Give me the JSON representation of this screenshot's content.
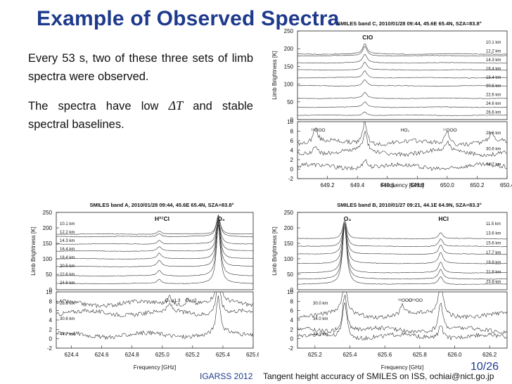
{
  "slide": {
    "title": "Example of Observed Spectra",
    "para1": "Every 53 s, two of these three sets of limb spectra were observed.",
    "para2_a": "The spectra have low",
    "para2_delta": "ΔT",
    "para2_b": "and stable spectral baselines.",
    "conference": "IGARSS 2012",
    "caption": "Tangent height accuracy of SMILES on ISS, ochiai@nict.go.jp",
    "page": "10/26"
  },
  "chart_data": [
    {
      "id": "band-c",
      "type": "line",
      "title": "SMILES band C, 2010/01/28 09:44, 45.6E 65.4N, SZA=83.8°",
      "xlabel": "Frequency  [GHz]",
      "ylabel": "Limb Brightness  [K]",
      "xlim": [
        649.0,
        650.4
      ],
      "x_ticks": [
        "649.2",
        "649.4",
        "649.6",
        "649.8",
        "650.0",
        "650.2",
        "650.4"
      ],
      "upper_ylim": [
        0,
        250
      ],
      "upper_ticks": [
        "0",
        "50",
        "100",
        "150",
        "200",
        "250"
      ],
      "lower_ylim": [
        -2,
        10
      ],
      "lower_ticks": [
        "-2",
        "0",
        "2",
        "4",
        "6",
        "8",
        "10"
      ],
      "upper_heights": [
        "10.1 km",
        "12.2 km",
        "14.3 km",
        "16.4 km",
        "18.4 km",
        "20.5 km",
        "22.6 km",
        "24.6 km",
        "26.6 km"
      ],
      "lower_heights": [
        "28.6 km",
        "30.6 km",
        "44.7 km"
      ],
      "species": [
        {
          "label": "ClO",
          "freq": 649.45
        },
        {
          "label": "HO₂",
          "freq": 649.7
        },
        {
          "label": "¹⁸OOO",
          "freq": 649.12
        },
        {
          "label": "¹⁷OOO",
          "freq": 650.0
        }
      ],
      "upper_series": [
        {
          "name": "10.1 km",
          "level": 185,
          "peaks": [
            [
              649.45,
              28
            ]
          ]
        },
        {
          "name": "12.2 km",
          "level": 180,
          "peaks": [
            [
              649.45,
              26
            ]
          ]
        },
        {
          "name": "14.3 km",
          "level": 160,
          "peaks": [
            [
              649.45,
              24
            ]
          ]
        },
        {
          "name": "16.4 km",
          "level": 140,
          "peaks": [
            [
              649.45,
              22
            ]
          ]
        },
        {
          "name": "18.4 km",
          "level": 118,
          "peaks": [
            [
              649.45,
              20
            ]
          ]
        },
        {
          "name": "20.5 km",
          "level": 95,
          "peaks": [
            [
              649.45,
              18
            ]
          ]
        },
        {
          "name": "22.6 km",
          "level": 60,
          "peaks": [
            [
              649.45,
              16
            ]
          ]
        },
        {
          "name": "24.6 km",
          "level": 35,
          "peaks": [
            [
              649.45,
              14
            ]
          ]
        },
        {
          "name": "26.6 km",
          "level": 12,
          "peaks": [
            [
              649.45,
              10
            ]
          ]
        }
      ],
      "lower_series": [
        {
          "name": "28.6 km",
          "level": 5.5,
          "peaks": [
            [
              649.12,
              3
            ],
            [
              649.45,
              5
            ],
            [
              650.0,
              3
            ],
            [
              650.3,
              2
            ]
          ]
        },
        {
          "name": "30.6 km",
          "level": 3.5,
          "peaks": [
            [
              649.12,
              2
            ],
            [
              649.45,
              4
            ],
            [
              650.0,
              2
            ]
          ]
        },
        {
          "name": "44.7 km",
          "level": 0.5,
          "peaks": [
            [
              649.45,
              2
            ]
          ]
        }
      ]
    },
    {
      "id": "band-a",
      "type": "line",
      "title": "SMILES band A, 2010/01/28 09:44, 45.6E 65.4N, SZA=83.8°",
      "xlabel": "Frequency  [GHz]",
      "ylabel": "Limb Brightness  [K]",
      "xlim": [
        624.3,
        625.6
      ],
      "x_ticks": [
        "624.4",
        "624.6",
        "624.8",
        "625.0",
        "625.2",
        "625.4",
        "625.6"
      ],
      "upper_ylim": [
        0,
        250
      ],
      "upper_ticks": [
        "0",
        "50",
        "100",
        "150",
        "200",
        "250"
      ],
      "lower_ylim": [
        -2,
        10
      ],
      "lower_ticks": [
        "-2",
        "0",
        "2",
        "4",
        "6",
        "8",
        "10"
      ],
      "upper_heights": [
        "10.1 km",
        "12.2 km",
        "14.3 km",
        "16.4 km",
        "18.4 km",
        "20.5 km",
        "22.6 km",
        "24.6 km"
      ],
      "lower_heights": [
        "28.6 km",
        "30.6 km",
        "44.7 km"
      ],
      "species": [
        {
          "label": "H³⁷Cl",
          "freq": 624.98
        },
        {
          "label": "O₃",
          "freq": 625.37
        },
        {
          "label": "O₃,ν1,3",
          "freq": 625.05
        },
        {
          "label": "O₃,ν2",
          "freq": 625.17
        }
      ],
      "upper_series": [
        {
          "name": "10.1 km",
          "level": 180,
          "peaks": [
            [
              625.37,
              60
            ],
            [
              624.98,
              10
            ]
          ]
        },
        {
          "name": "12.2 km",
          "level": 172,
          "peaks": [
            [
              625.37,
              70
            ],
            [
              624.98,
              10
            ]
          ]
        },
        {
          "name": "14.3 km",
          "level": 148,
          "peaks": [
            [
              625.37,
              85
            ],
            [
              624.98,
              12
            ]
          ]
        },
        {
          "name": "16.4 km",
          "level": 125,
          "peaks": [
            [
              625.37,
              105
            ],
            [
              624.98,
              14
            ]
          ]
        },
        {
          "name": "18.4 km",
          "level": 100,
          "peaks": [
            [
              625.37,
              130
            ],
            [
              624.98,
              18
            ]
          ]
        },
        {
          "name": "20.5 km",
          "level": 75,
          "peaks": [
            [
              625.37,
              155
            ],
            [
              624.98,
              20
            ]
          ]
        },
        {
          "name": "22.6 km",
          "level": 45,
          "peaks": [
            [
              625.37,
              175
            ],
            [
              624.98,
              18
            ]
          ]
        },
        {
          "name": "24.6 km",
          "level": 20,
          "peaks": [
            [
              625.37,
              190
            ],
            [
              624.98,
              14
            ]
          ]
        }
      ],
      "lower_series": [
        {
          "name": "28.6 km",
          "level": 7.5,
          "peaks": [
            [
              625.37,
              8
            ],
            [
              625.05,
              2
            ],
            [
              625.17,
              1.5
            ]
          ]
        },
        {
          "name": "30.6 km",
          "level": 5.5,
          "peaks": [
            [
              625.37,
              8
            ],
            [
              625.05,
              1.5
            ]
          ]
        },
        {
          "name": "44.7 km",
          "level": 0.8,
          "peaks": [
            [
              625.37,
              8
            ]
          ]
        }
      ]
    },
    {
      "id": "band-b",
      "type": "line",
      "title": "SMILES band B, 2010/01/27 09:21, 44.1E 64.9N, SZA=83.3°",
      "xlabel": "Frequency  [GHz]",
      "ylabel": "Limb Brightness  [K]",
      "xlim": [
        625.1,
        626.3
      ],
      "x_ticks": [
        "625.2",
        "625.4",
        "625.6",
        "625.8",
        "626.0",
        "626.2"
      ],
      "upper_ylim": [
        0,
        250
      ],
      "upper_ticks": [
        "0",
        "50",
        "100",
        "150",
        "200",
        "250"
      ],
      "lower_ylim": [
        -2,
        10
      ],
      "lower_ticks": [
        "-2",
        "0",
        "2",
        "4",
        "6",
        "8",
        "10"
      ],
      "upper_heights": [
        "11.5 km",
        "13.6 km",
        "15.6 km",
        "17.7 km",
        "19.8 km",
        "21.8 km",
        "23.8 km"
      ],
      "lower_heights": [
        "30.0 km",
        "34.0 km",
        "44.1 km"
      ],
      "species": [
        {
          "label": "O₃",
          "freq": 625.37
        },
        {
          "label": "HCl",
          "freq": 625.92
        },
        {
          "label": "¹⁸OOO",
          "freq": 625.7
        },
        {
          "label": "O¹⁸OO",
          "freq": 625.76
        }
      ],
      "upper_series": [
        {
          "name": "11.5 km",
          "level": 165,
          "peaks": [
            [
              625.37,
              60
            ],
            [
              625.92,
              20
            ]
          ]
        },
        {
          "name": "13.6 km",
          "level": 140,
          "peaks": [
            [
              625.37,
              80
            ],
            [
              625.92,
              25
            ]
          ]
        },
        {
          "name": "15.6 km",
          "level": 115,
          "peaks": [
            [
              625.37,
              105
            ],
            [
              625.92,
              30
            ]
          ]
        },
        {
          "name": "17.7 km",
          "level": 85,
          "peaks": [
            [
              625.37,
              135
            ],
            [
              625.92,
              35
            ]
          ]
        },
        {
          "name": "19.8 km",
          "level": 55,
          "peaks": [
            [
              625.37,
              160
            ],
            [
              625.92,
              35
            ]
          ]
        },
        {
          "name": "21.8 km",
          "level": 35,
          "peaks": [
            [
              625.37,
              180
            ],
            [
              625.92,
              30
            ]
          ]
        },
        {
          "name": "23.8 km",
          "level": 18,
          "peaks": [
            [
              625.37,
              190
            ],
            [
              625.92,
              25
            ]
          ]
        }
      ],
      "lower_series": [
        {
          "name": "30.0 km",
          "level": 5.0,
          "peaks": [
            [
              625.37,
              8
            ],
            [
              625.7,
              2
            ],
            [
              625.92,
              8
            ]
          ]
        },
        {
          "name": "34.0 km",
          "level": 1.8,
          "peaks": [
            [
              625.37,
              8
            ],
            [
              625.92,
              6
            ]
          ]
        },
        {
          "name": "44.1 km",
          "level": 0.4,
          "peaks": [
            [
              625.37,
              8
            ],
            [
              625.92,
              3
            ]
          ]
        }
      ]
    }
  ]
}
